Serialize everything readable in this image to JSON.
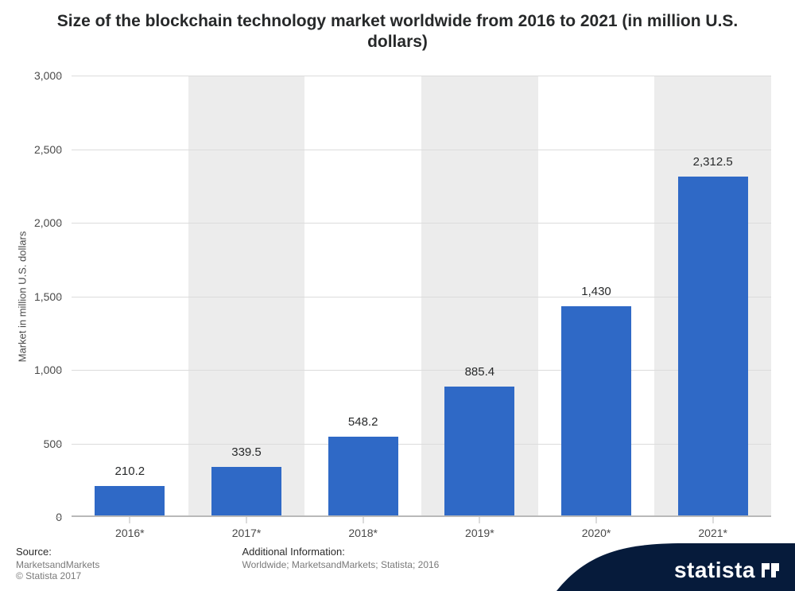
{
  "title": "Size of the blockchain technology market worldwide from 2016 to 2021 (in million U.S. dollars)",
  "title_fontsize": 21,
  "chart": {
    "type": "bar",
    "categories": [
      "2016*",
      "2017*",
      "2018*",
      "2019*",
      "2020*",
      "2021*"
    ],
    "values": [
      210.2,
      339.5,
      548.2,
      885.4,
      1430,
      2312.5
    ],
    "value_labels": [
      "210.2",
      "339.5",
      "548.2",
      "885.4",
      "1,430",
      "2,312.5"
    ],
    "bar_color": "#2f69c6",
    "bar_width_pct": 60,
    "ylabel": "Market in million U.S. dollars",
    "ylabel_fontsize": 13,
    "ylim": [
      0,
      3000
    ],
    "ytick_step": 500,
    "ytick_labels": [
      "0",
      "500",
      "1,000",
      "1,500",
      "2,000",
      "2,500",
      "3,000"
    ],
    "tick_fontsize": 14,
    "value_label_fontsize": 15,
    "background_color": "#ffffff",
    "stripe_color_alt": "#ececec",
    "grid_color": "#dcdcdc",
    "axis_color": "#b9b9b9",
    "tick_color": "#4a4a4a"
  },
  "footer": {
    "source_label": "Source:",
    "source_value": "MarketsandMarkets",
    "copyright": "© Statista 2017",
    "additional_label": "Additional Information:",
    "additional_value": "Worldwide; MarketsandMarkets; Statista; 2016",
    "label_fontsize": 13,
    "value_fontsize": 12,
    "value_color": "#7a7a7a"
  },
  "brand": {
    "name": "statista",
    "badge_fill": "#061b3b",
    "text_color": "#ffffff"
  }
}
